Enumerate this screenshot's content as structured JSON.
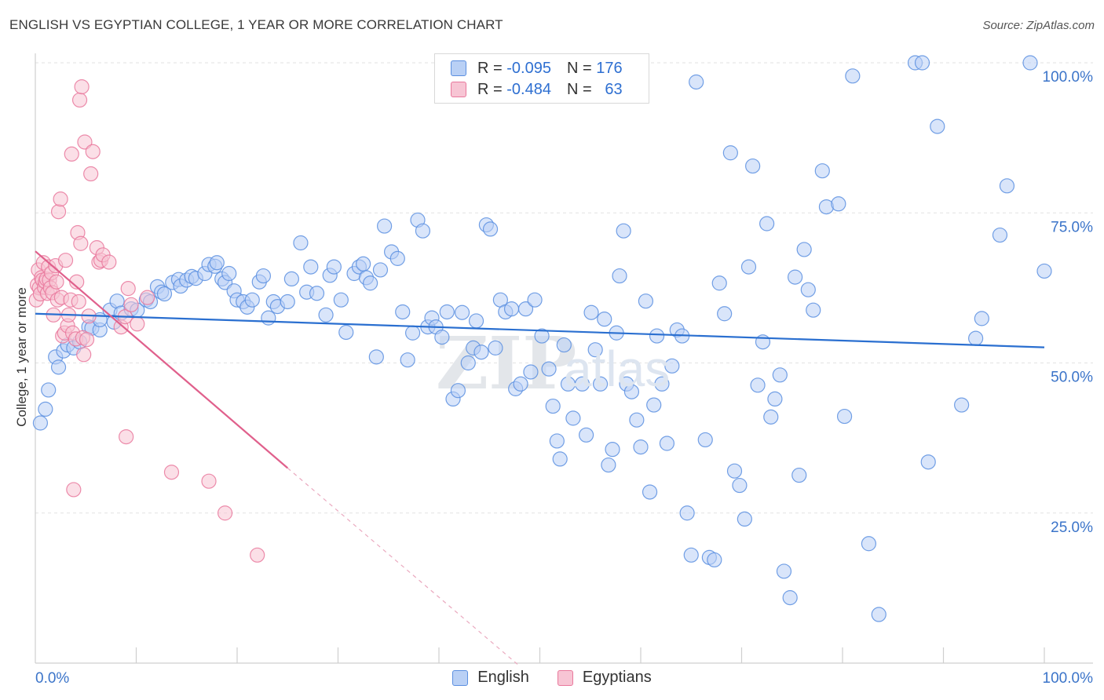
{
  "title": "ENGLISH VS EGYPTIAN COLLEGE, 1 YEAR OR MORE CORRELATION CHART",
  "source": "Source: ZipAtlas.com",
  "watermark": "ZIPatlas",
  "stats": [
    {
      "r_label": "R =",
      "r_value": "-0.095",
      "n_label": "N =",
      "n_value": "176",
      "color": "#5b8fe0",
      "fill": "#b9d0f5"
    },
    {
      "r_label": "R =",
      "r_value": "-0.484",
      "n_label": "N =",
      "n_value": "63",
      "color": "#e9789c",
      "fill": "#f7c5d4"
    }
  ],
  "legend": [
    {
      "label": "English",
      "color": "#5b8fe0",
      "fill": "#b9d0f5"
    },
    {
      "label": "Egyptians",
      "color": "#e9789c",
      "fill": "#f7c5d4"
    }
  ],
  "chart_data": {
    "type": "scatter",
    "title": "ENGLISH VS EGYPTIAN COLLEGE, 1 YEAR OR MORE CORRELATION CHART",
    "xlabel": "",
    "ylabel": "College, 1 year or more",
    "xlim": [
      0,
      100
    ],
    "ylim": [
      0,
      102
    ],
    "x_tick_labels": [
      {
        "value": 0,
        "label": "0.0%"
      },
      {
        "value": 100,
        "label": "100.0%"
      }
    ],
    "y_tick_labels": [
      {
        "value": 25,
        "label": "25.0%"
      },
      {
        "value": 50,
        "label": "50.0%"
      },
      {
        "value": 75,
        "label": "75.0%"
      },
      {
        "value": 100,
        "label": "100.0%"
      }
    ],
    "grid": true,
    "series": [
      {
        "name": "English",
        "color": "#5b8fe0",
        "fill": "#b9d0f5",
        "trend": {
          "x0": 0,
          "y0": 58.2,
          "x1": 100,
          "y1": 52.6,
          "color": "#2a6fd0"
        },
        "points": [
          [
            0.5,
            40
          ],
          [
            1,
            42.3
          ],
          [
            1.3,
            45.5
          ],
          [
            2,
            51
          ],
          [
            2.3,
            49.3
          ],
          [
            2.8,
            52
          ],
          [
            3.2,
            53
          ],
          [
            3.8,
            52.5
          ],
          [
            4.4,
            53.5
          ],
          [
            5.3,
            56
          ],
          [
            5.6,
            55.8
          ],
          [
            6.4,
            55.5
          ],
          [
            6.4,
            57.2
          ],
          [
            7.4,
            58.8
          ],
          [
            7.8,
            56.8
          ],
          [
            8.1,
            60.3
          ],
          [
            8.5,
            58.3
          ],
          [
            9.5,
            59
          ],
          [
            10.1,
            58.8
          ],
          [
            11,
            60.5
          ],
          [
            11.4,
            60.2
          ],
          [
            12.1,
            62.7
          ],
          [
            12.5,
            61.8
          ],
          [
            12.8,
            61.5
          ],
          [
            13.6,
            63.4
          ],
          [
            14.2,
            63.9
          ],
          [
            14.4,
            62.8
          ],
          [
            15,
            63.8
          ],
          [
            15.5,
            64.4
          ],
          [
            15.9,
            64.1
          ],
          [
            16.8,
            64.9
          ],
          [
            17.2,
            66.4
          ],
          [
            17.8,
            66.1
          ],
          [
            18,
            66.7
          ],
          [
            18.5,
            64
          ],
          [
            18.8,
            63.4
          ],
          [
            19.2,
            64.9
          ],
          [
            19.7,
            62
          ],
          [
            20,
            60.5
          ],
          [
            20.6,
            60.2
          ],
          [
            21,
            59.3
          ],
          [
            21.5,
            60.5
          ],
          [
            22.2,
            63.5
          ],
          [
            22.6,
            64.5
          ],
          [
            23.1,
            57.5
          ],
          [
            23.6,
            60.2
          ],
          [
            24,
            59.4
          ],
          [
            25,
            60.2
          ],
          [
            25.4,
            64
          ],
          [
            26.3,
            70
          ],
          [
            26.9,
            61.8
          ],
          [
            27.3,
            66
          ],
          [
            27.9,
            61.6
          ],
          [
            28.8,
            58
          ],
          [
            29.2,
            64.6
          ],
          [
            29.6,
            66
          ],
          [
            30.3,
            60.5
          ],
          [
            30.8,
            55.1
          ],
          [
            31.6,
            64.9
          ],
          [
            32.1,
            66
          ],
          [
            32.5,
            66.5
          ],
          [
            32.8,
            64.2
          ],
          [
            33.2,
            63.3
          ],
          [
            33.8,
            51
          ],
          [
            34.2,
            65.5
          ],
          [
            34.6,
            72.8
          ],
          [
            35.3,
            68.5
          ],
          [
            35.9,
            67.4
          ],
          [
            36.4,
            58.5
          ],
          [
            36.9,
            50.5
          ],
          [
            37.4,
            55
          ],
          [
            37.9,
            73.8
          ],
          [
            38.4,
            72
          ],
          [
            38.9,
            56
          ],
          [
            39.3,
            57.5
          ],
          [
            39.7,
            56
          ],
          [
            40.3,
            54.3
          ],
          [
            40.8,
            58.5
          ],
          [
            41.4,
            44
          ],
          [
            41.9,
            45.4
          ],
          [
            42.3,
            58.4
          ],
          [
            42.9,
            50
          ],
          [
            43.4,
            52.5
          ],
          [
            43.7,
            57
          ],
          [
            44.2,
            51.8
          ],
          [
            44.7,
            73
          ],
          [
            45.1,
            72.3
          ],
          [
            45.6,
            52.5
          ],
          [
            46.1,
            60.5
          ],
          [
            46.6,
            58.5
          ],
          [
            47.2,
            59
          ],
          [
            47.6,
            45.7
          ],
          [
            48.1,
            46.5
          ],
          [
            48.6,
            59
          ],
          [
            49.1,
            48.5
          ],
          [
            49.5,
            60.5
          ],
          [
            50.2,
            54.5
          ],
          [
            50.9,
            49
          ],
          [
            51.3,
            42.8
          ],
          [
            51.7,
            37
          ],
          [
            52,
            34
          ],
          [
            52.4,
            53
          ],
          [
            52.8,
            46.5
          ],
          [
            53.3,
            40.8
          ],
          [
            54.2,
            46.5
          ],
          [
            54.6,
            38
          ],
          [
            55.1,
            58.4
          ],
          [
            55.5,
            52.2
          ],
          [
            56,
            46.5
          ],
          [
            56.4,
            57.3
          ],
          [
            56.8,
            33
          ],
          [
            57.2,
            35.6
          ],
          [
            57.6,
            55
          ],
          [
            57.9,
            64.5
          ],
          [
            58.3,
            72
          ],
          [
            58.6,
            46.5
          ],
          [
            59.1,
            45.2
          ],
          [
            59.6,
            40.5
          ],
          [
            60,
            36
          ],
          [
            60.5,
            60.3
          ],
          [
            60.9,
            28.5
          ],
          [
            61.3,
            43
          ],
          [
            61.6,
            54.5
          ],
          [
            62.1,
            46.5
          ],
          [
            62.6,
            36.6
          ],
          [
            63.1,
            49.5
          ],
          [
            63.6,
            55.5
          ],
          [
            64.1,
            54.5
          ],
          [
            64.6,
            25
          ],
          [
            65,
            18
          ],
          [
            65.5,
            96.8
          ],
          [
            66.4,
            37.2
          ],
          [
            66.8,
            17.6
          ],
          [
            67.3,
            17.2
          ],
          [
            67.8,
            63.3
          ],
          [
            68.3,
            58.2
          ],
          [
            68.9,
            85
          ],
          [
            69.3,
            32
          ],
          [
            69.8,
            29.6
          ],
          [
            70.3,
            24
          ],
          [
            70.7,
            66
          ],
          [
            71.1,
            82.8
          ],
          [
            71.6,
            46.3
          ],
          [
            72.1,
            53.5
          ],
          [
            72.5,
            73.2
          ],
          [
            72.9,
            41
          ],
          [
            73.3,
            44
          ],
          [
            73.8,
            48
          ],
          [
            74.2,
            15.3
          ],
          [
            74.8,
            10.9
          ],
          [
            75.3,
            64.3
          ],
          [
            75.7,
            31.3
          ],
          [
            76.2,
            68.9
          ],
          [
            76.6,
            62.2
          ],
          [
            77.1,
            58.8
          ],
          [
            78,
            82
          ],
          [
            78.4,
            76
          ],
          [
            79.6,
            76.5
          ],
          [
            80.2,
            41.1
          ],
          [
            81,
            97.8
          ],
          [
            82.6,
            19.9
          ],
          [
            83.6,
            8.1
          ],
          [
            87.2,
            100
          ],
          [
            87.9,
            100
          ],
          [
            88.5,
            33.5
          ],
          [
            89.4,
            89.4
          ],
          [
            91.8,
            43
          ],
          [
            93.2,
            54.1
          ],
          [
            93.8,
            57.4
          ],
          [
            95.6,
            71.3
          ],
          [
            96.3,
            79.5
          ],
          [
            98.6,
            100
          ],
          [
            100,
            65.3
          ]
        ]
      },
      {
        "name": "Egyptians",
        "color": "#e9789c",
        "fill": "#f7c5d4",
        "trend": {
          "x0": 0,
          "y0": 68.6,
          "x1": 25,
          "y1": 32.5,
          "dash_x1": 48,
          "dash_y1": -0.5,
          "color": "#e0608c"
        },
        "points": [
          [
            0.1,
            60.5
          ],
          [
            0.2,
            63
          ],
          [
            0.3,
            65.5
          ],
          [
            0.4,
            62.5
          ],
          [
            0.5,
            61.5
          ],
          [
            0.6,
            64.2
          ],
          [
            0.7,
            63.8
          ],
          [
            0.8,
            66.7
          ],
          [
            0.9,
            62.6
          ],
          [
            1,
            63.5
          ],
          [
            1.1,
            64
          ],
          [
            1.2,
            61.6
          ],
          [
            1.3,
            66
          ],
          [
            1.4,
            63.8
          ],
          [
            1.5,
            62.5
          ],
          [
            1.6,
            65
          ],
          [
            1.7,
            61.7
          ],
          [
            1.8,
            58
          ],
          [
            2,
            66.2
          ],
          [
            2.1,
            63.5
          ],
          [
            2.2,
            60.5
          ],
          [
            2.3,
            75.2
          ],
          [
            2.5,
            77.3
          ],
          [
            2.6,
            60.9
          ],
          [
            2.7,
            54.5
          ],
          [
            2.9,
            55
          ],
          [
            3,
            67.1
          ],
          [
            3.2,
            56.2
          ],
          [
            3.3,
            58
          ],
          [
            3.5,
            60.5
          ],
          [
            3.6,
            84.8
          ],
          [
            3.7,
            55
          ],
          [
            3.8,
            28.9
          ],
          [
            4,
            54
          ],
          [
            4.1,
            63.5
          ],
          [
            4.2,
            71.7
          ],
          [
            4.3,
            60.2
          ],
          [
            4.4,
            93.8
          ],
          [
            4.5,
            69.9
          ],
          [
            4.6,
            96
          ],
          [
            4.7,
            54.2
          ],
          [
            4.8,
            51.4
          ],
          [
            4.9,
            86.8
          ],
          [
            5.1,
            53.9
          ],
          [
            5.3,
            57.8
          ],
          [
            5.5,
            81.5
          ],
          [
            5.7,
            85.2
          ],
          [
            6.1,
            69.2
          ],
          [
            6.3,
            66.8
          ],
          [
            6.5,
            67.1
          ],
          [
            6.7,
            68
          ],
          [
            7.3,
            66.8
          ],
          [
            8.5,
            56
          ],
          [
            8.9,
            57.7
          ],
          [
            9,
            37.7
          ],
          [
            9.2,
            62.4
          ],
          [
            9.5,
            59.7
          ],
          [
            10.1,
            56.5
          ],
          [
            11.1,
            60.9
          ],
          [
            13.5,
            31.8
          ],
          [
            17.2,
            30.3
          ],
          [
            18.8,
            25
          ],
          [
            22,
            18
          ]
        ]
      }
    ]
  }
}
